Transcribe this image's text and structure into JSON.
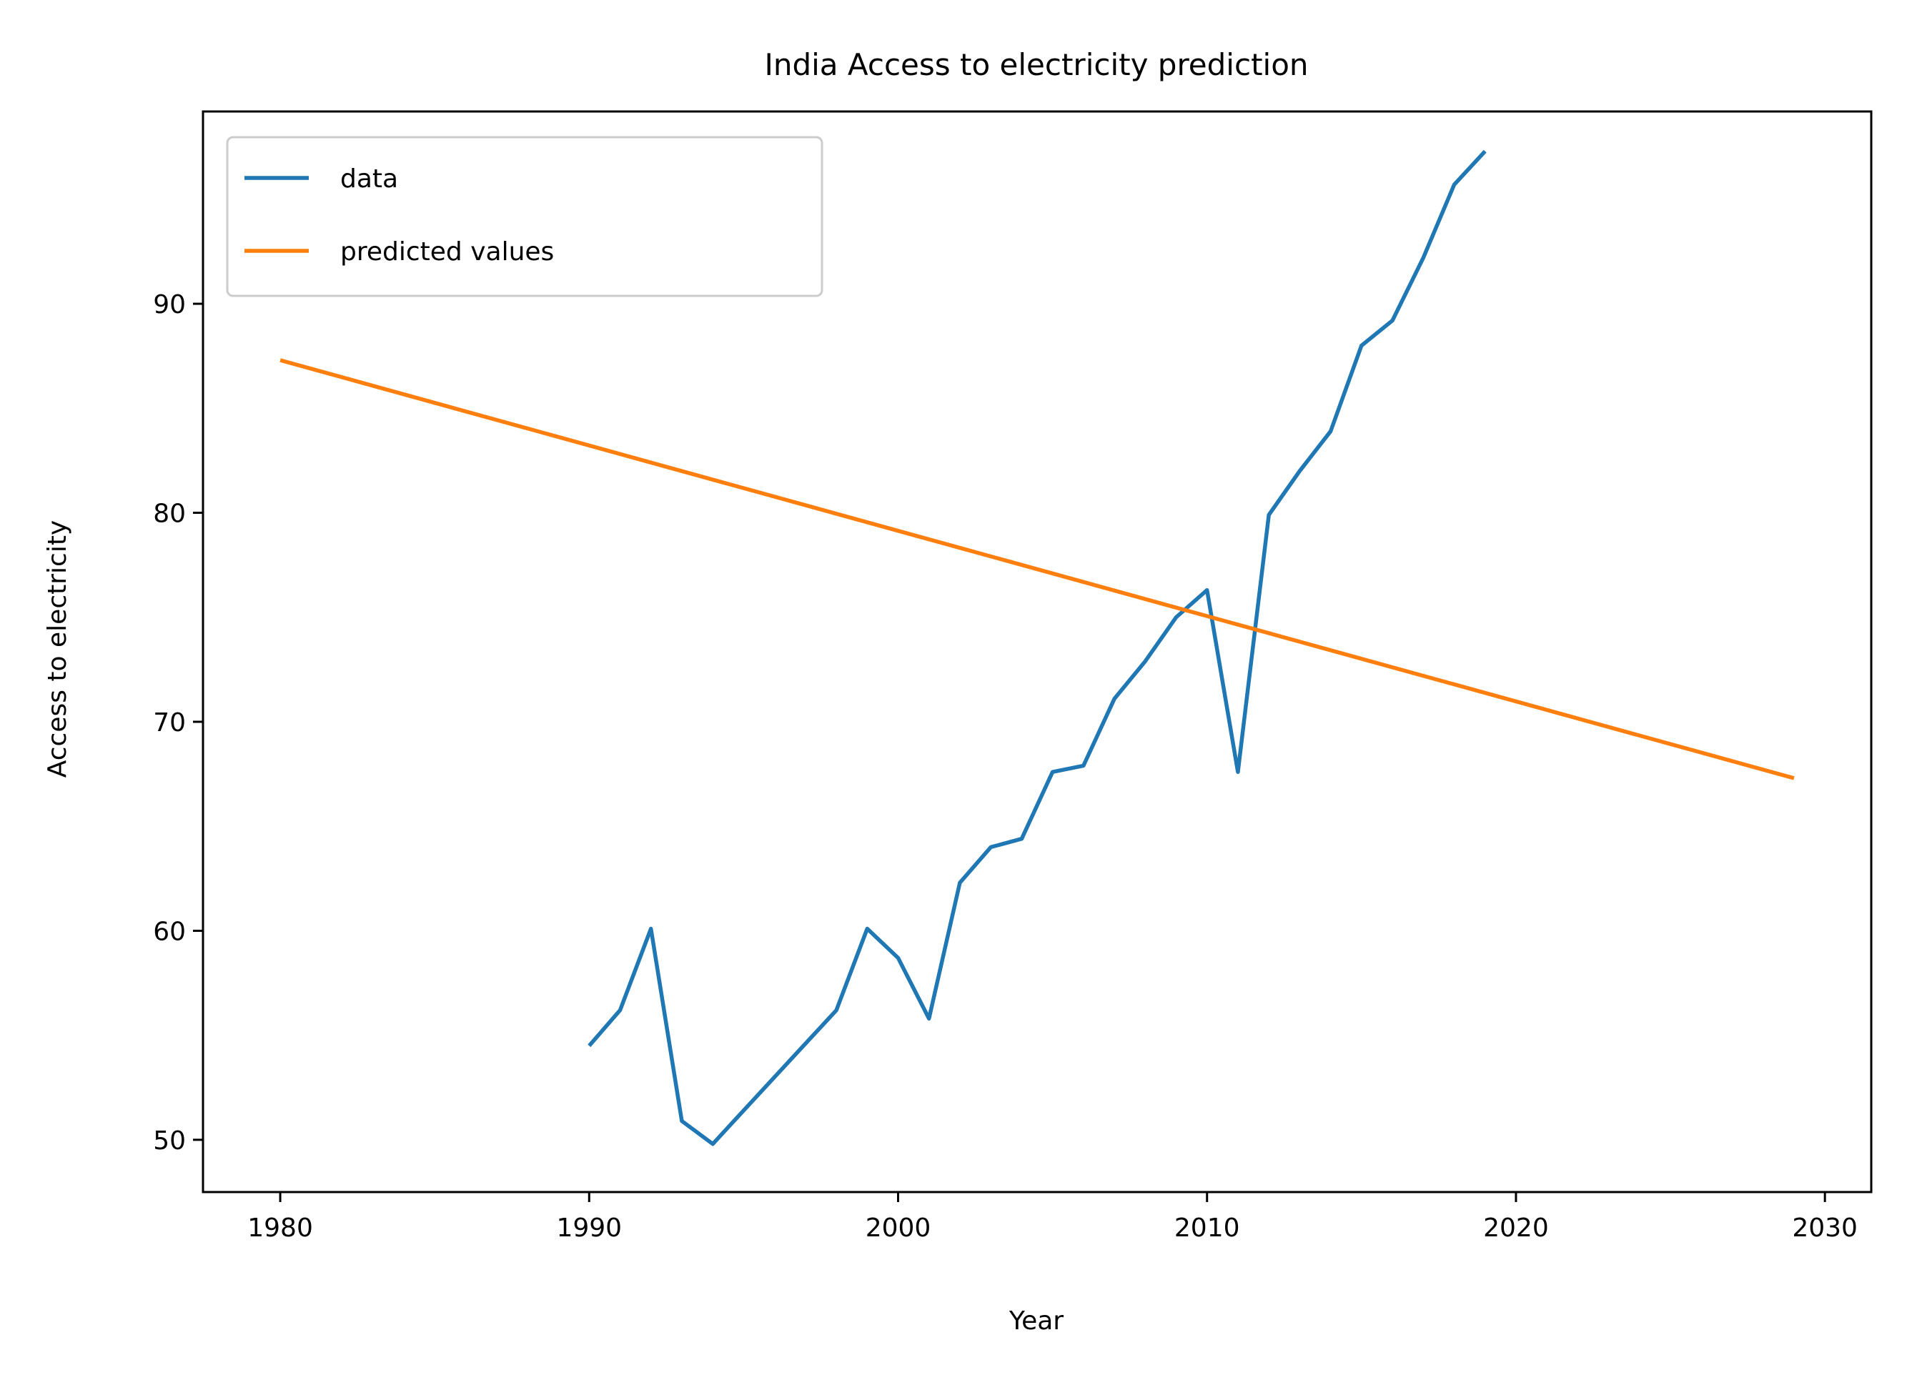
{
  "chart_data": {
    "type": "line",
    "title": "India Access to electricity prediction",
    "xlabel": "Year",
    "ylabel": "Access to electricity",
    "xlim": [
      1977.5,
      2031.5
    ],
    "ylim": [
      47.5,
      99.2
    ],
    "xticks": [
      1980,
      1990,
      2000,
      2010,
      2020,
      2030
    ],
    "yticks": [
      50,
      60,
      70,
      80,
      90
    ],
    "grid": false,
    "legend": "top-left",
    "series": [
      {
        "name": "data",
        "color": "#1f77b4",
        "x": [
          1990,
          1991,
          1992,
          1993,
          1994,
          1995,
          1996,
          1997,
          1998,
          1999,
          2000,
          2001,
          2002,
          2003,
          2004,
          2005,
          2006,
          2007,
          2008,
          2009,
          2010,
          2011,
          2012,
          2013,
          2014,
          2015,
          2016,
          2017,
          2018,
          2019
        ],
        "y": [
          54.5,
          56.2,
          60.1,
          50.9,
          49.8,
          51.4,
          53.0,
          54.6,
          56.2,
          60.1,
          58.7,
          55.8,
          62.3,
          64.0,
          64.4,
          67.6,
          67.9,
          71.1,
          72.9,
          75.0,
          76.3,
          67.6,
          79.9,
          82.0,
          83.9,
          88.0,
          89.2,
          92.2,
          95.7,
          97.3
        ]
      },
      {
        "name": "predicted values",
        "color": "#ff7f0e",
        "x": [
          1980,
          2029
        ],
        "y": [
          87.3,
          67.3
        ]
      }
    ]
  }
}
